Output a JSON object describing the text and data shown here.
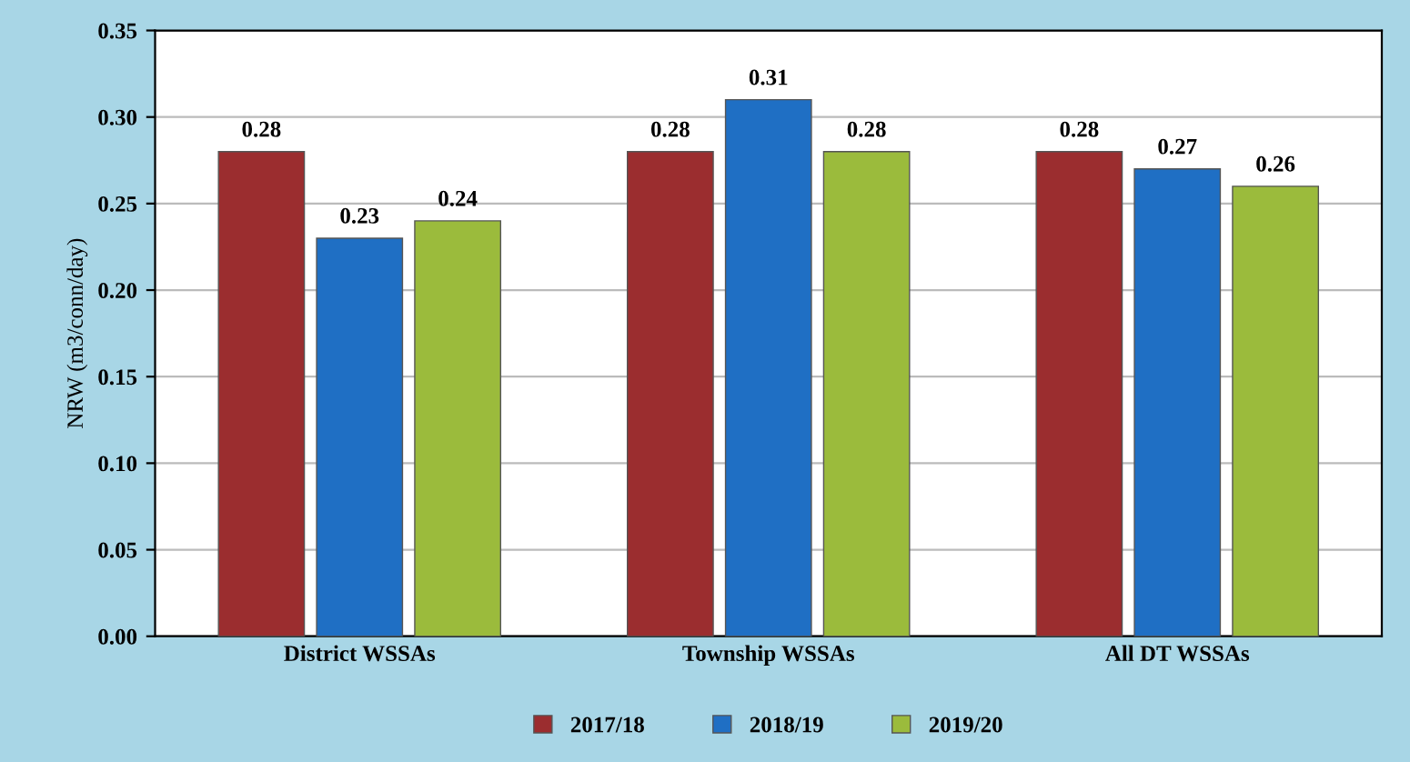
{
  "chart_data": {
    "type": "bar",
    "ylabel": "NRW (m3/conn/day)",
    "categories": [
      "District WSSAs",
      "Township WSSAs",
      "All DT WSSAs"
    ],
    "series": [
      {
        "name": "2017/18",
        "color": "#9b2d2f",
        "values": [
          0.28,
          0.28,
          0.28
        ]
      },
      {
        "name": "2018/19",
        "color": "#1f6fc4",
        "values": [
          0.23,
          0.31,
          0.27
        ]
      },
      {
        "name": "2019/20",
        "color": "#9bbb3c",
        "values": [
          0.24,
          0.28,
          0.26
        ]
      }
    ],
    "ylim": [
      0,
      0.35
    ],
    "yticks": [
      {
        "value": 0,
        "label": "0.00"
      },
      {
        "value": 0.05,
        "label": "0.05"
      },
      {
        "value": 0.1,
        "label": "0.10"
      },
      {
        "value": 0.15,
        "label": "0.15"
      },
      {
        "value": 0.2,
        "label": "0.20"
      },
      {
        "value": 0.25,
        "label": "0.25"
      },
      {
        "value": 0.3,
        "label": "0.30"
      },
      {
        "value": 0.35,
        "label": "0.35"
      }
    ],
    "grid": "y",
    "legend": "bottom",
    "data_labels": true
  }
}
